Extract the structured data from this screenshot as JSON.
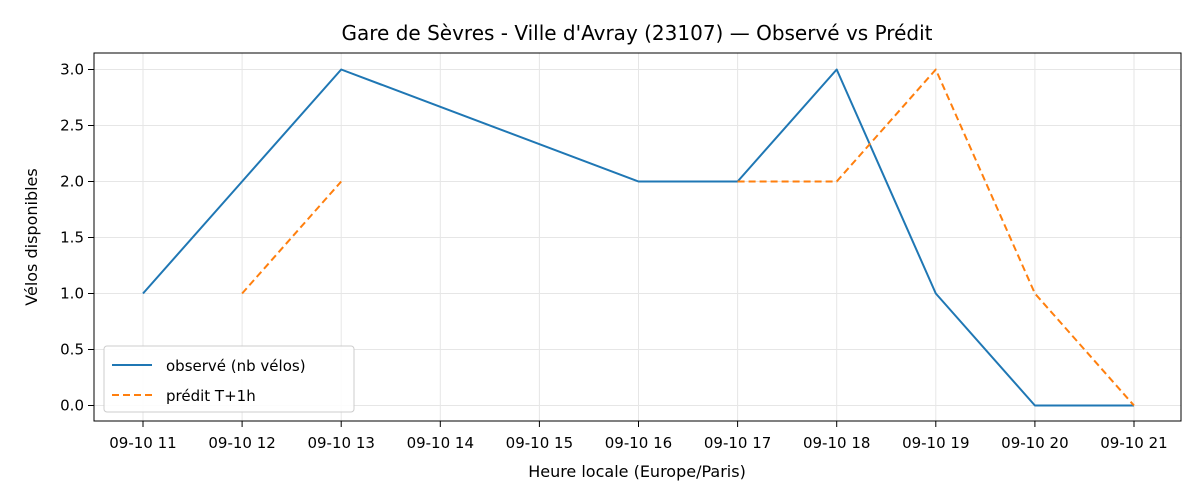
{
  "chart_data": {
    "type": "line",
    "title": "Gare de Sèvres - Ville d'Avray (23107) — Observé vs Prédit",
    "xlabel": "Heure locale (Europe/Paris)",
    "ylabel": "Vélos disponibles",
    "x_tick_labels": [
      "09-10 11",
      "09-10 12",
      "09-10 13",
      "09-10 14",
      "09-10 15",
      "09-10 16",
      "09-10 17",
      "09-10 18",
      "09-10 19",
      "09-10 20",
      "09-10 21"
    ],
    "y_tick_labels": [
      "0.0",
      "0.5",
      "1.0",
      "1.5",
      "2.0",
      "2.5",
      "3.0"
    ],
    "y_ticks": [
      0,
      0.5,
      1.0,
      1.5,
      2.0,
      2.5,
      3.0
    ],
    "xlim": [
      "09-10 11",
      "09-10 21"
    ],
    "ylim": [
      0,
      3.0
    ],
    "grid": true,
    "legend_position": "bottom-left",
    "series": [
      {
        "name": "observé (nb vélos)",
        "style": "solid",
        "color": "#1f77b4",
        "points": [
          {
            "x": "09-10 11",
            "y": 1
          },
          {
            "x": "09-10 12",
            "y": 2
          },
          {
            "x": "09-10 13",
            "y": 3
          },
          {
            "x": "09-10 16",
            "y": 2
          },
          {
            "x": "09-10 17",
            "y": 2
          },
          {
            "x": "09-10 18",
            "y": 3
          },
          {
            "x": "09-10 19",
            "y": 1
          },
          {
            "x": "09-10 20",
            "y": 0
          },
          {
            "x": "09-10 21",
            "y": 0
          }
        ]
      },
      {
        "name": "prédit T+1h",
        "style": "dashed",
        "color": "#ff7f0e",
        "segments": [
          [
            {
              "x": "09-10 12",
              "y": 1
            },
            {
              "x": "09-10 13",
              "y": 2
            }
          ],
          [
            {
              "x": "09-10 17",
              "y": 2
            },
            {
              "x": "09-10 18",
              "y": 2
            },
            {
              "x": "09-10 19",
              "y": 3
            },
            {
              "x": "09-10 20",
              "y": 1
            },
            {
              "x": "09-10 21",
              "y": 0
            }
          ]
        ]
      }
    ]
  }
}
